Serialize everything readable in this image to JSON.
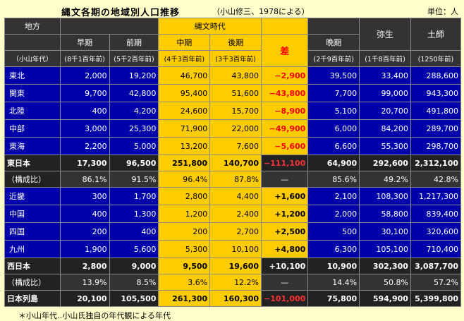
{
  "title": "縄文各期の地域別人口推移",
  "subtitle": "（小山修三、1978による）",
  "unit": "単位：人",
  "header": {
    "region": "地方",
    "region_sub": "（小山年代）",
    "jomon": "縄文時代",
    "diff": "差",
    "cols": [
      {
        "label": "早期",
        "sub": "(8千1百年前)"
      },
      {
        "label": "前期",
        "sub": "(5千2百年前)"
      },
      {
        "label": "中期",
        "sub": "(4千3百年前)"
      },
      {
        "label": "後期",
        "sub": "(3千3百年前)"
      },
      {
        "label": "晩期",
        "sub": "(2千9百年前)"
      },
      {
        "label": "弥生",
        "sub": "(1千8百年前)"
      },
      {
        "label": "土師",
        "sub": "(1250年前)"
      }
    ]
  },
  "rows": [
    {
      "name": "東北",
      "vals": [
        "2,000",
        "19,200",
        "46,700",
        "43,800",
        "−2,900",
        "39,500",
        "33,400",
        "288,600"
      ],
      "sign": "neg",
      "kind": "blue"
    },
    {
      "name": "関東",
      "vals": [
        "9,700",
        "42,800",
        "95,400",
        "51,600",
        "−43,800",
        "7,700",
        "99,000",
        "943,300"
      ],
      "sign": "neg",
      "kind": "blue"
    },
    {
      "name": "北陸",
      "vals": [
        "400",
        "4,200",
        "24,600",
        "15,700",
        "−8,900",
        "5,100",
        "20,700",
        "491,800"
      ],
      "sign": "neg",
      "kind": "blue"
    },
    {
      "name": "中部",
      "vals": [
        "3,000",
        "25,300",
        "71,900",
        "22,000",
        "−49,900",
        "6,000",
        "84,200",
        "289,700"
      ],
      "sign": "neg",
      "kind": "blue"
    },
    {
      "name": "東海",
      "vals": [
        "2,200",
        "5,000",
        "13,200",
        "7,600",
        "−5,600",
        "6,600",
        "55,300",
        "298,700"
      ],
      "sign": "neg",
      "kind": "blue"
    },
    {
      "name": "東日本",
      "vals": [
        "17,300",
        "96,500",
        "251,800",
        "140,700",
        "−111,100",
        "64,900",
        "292,600",
        "2,312,100"
      ],
      "sign": "neg",
      "kind": "dark"
    },
    {
      "name": "（構成比）",
      "vals": [
        "86.1%",
        "91.5%",
        "96.4%",
        "87.8%",
        "—",
        "85.6%",
        "49.2%",
        "42.8%"
      ],
      "sign": "none",
      "kind": "ratio"
    },
    {
      "name": "近畿",
      "vals": [
        "300",
        "1,700",
        "2,800",
        "4,400",
        "+1,600",
        "2,100",
        "108,300",
        "1,217,300"
      ],
      "sign": "pos",
      "kind": "blue"
    },
    {
      "name": "中国",
      "vals": [
        "400",
        "1,300",
        "1,200",
        "2,400",
        "+1,200",
        "2,000",
        "58,800",
        "839,400"
      ],
      "sign": "pos",
      "kind": "blue"
    },
    {
      "name": "四国",
      "vals": [
        "200",
        "400",
        "200",
        "2,700",
        "+2,500",
        "500",
        "30,100",
        "320,600"
      ],
      "sign": "pos",
      "kind": "blue"
    },
    {
      "name": "九州",
      "vals": [
        "1,900",
        "5,600",
        "5,300",
        "10,100",
        "+4,800",
        "6,300",
        "105,100",
        "710,400"
      ],
      "sign": "pos",
      "kind": "blue"
    },
    {
      "name": "西日本",
      "vals": [
        "2,800",
        "9,000",
        "9,500",
        "19,600",
        "+10,100",
        "10,900",
        "302,300",
        "3,087,700"
      ],
      "sign": "pos",
      "kind": "dark"
    },
    {
      "name": "（構成比）",
      "vals": [
        "13.9%",
        "8.5%",
        "3.6%",
        "12.2%",
        "—",
        "14.4%",
        "50.8%",
        "57.2%"
      ],
      "sign": "none",
      "kind": "ratio"
    },
    {
      "name": "日本列島",
      "vals": [
        "20,100",
        "105,500",
        "261,300",
        "160,300",
        "−101,000",
        "75,800",
        "594,900",
        "5,399,800"
      ],
      "sign": "neg",
      "kind": "dark"
    }
  ],
  "note": "＊小山年代‥小山氏独自の年代観による年代"
}
